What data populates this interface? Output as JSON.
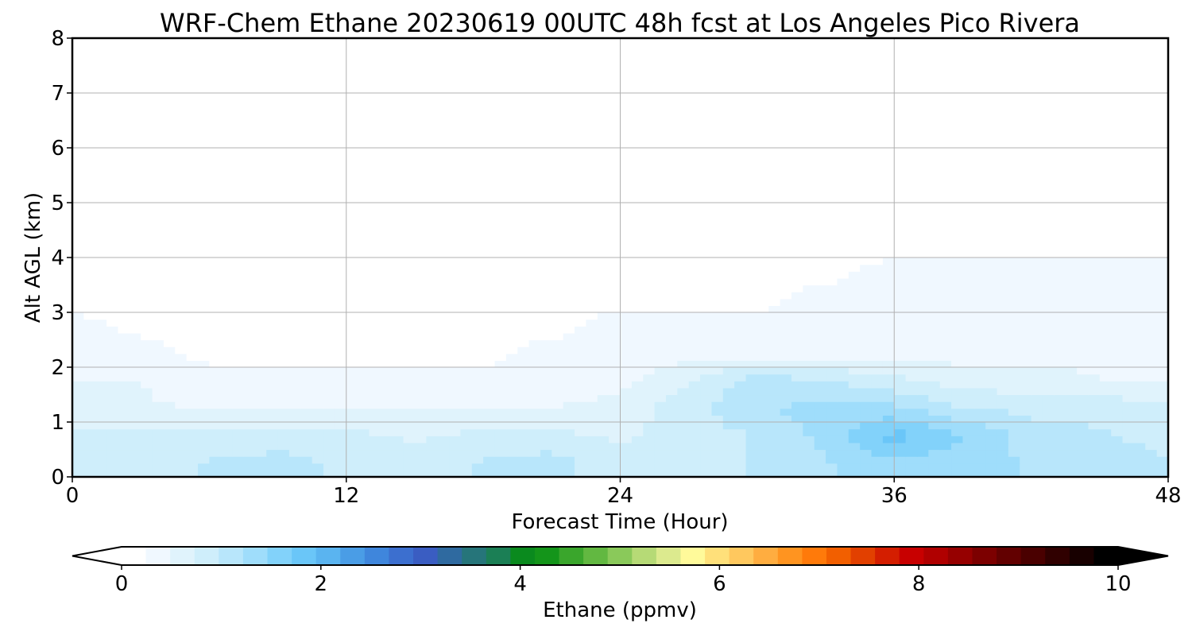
{
  "chart_data": {
    "type": "heatmap",
    "title": "WRF-Chem Ethane  20230619 00UTC 48h fcst at Los Angeles Pico Rivera",
    "xlabel": "Forecast Time (Hour)",
    "ylabel": "Alt AGL (km)",
    "xlim": [
      0,
      48
    ],
    "ylim": [
      0,
      8
    ],
    "xticks": [
      0,
      12,
      24,
      36,
      48
    ],
    "yticks": [
      0,
      1,
      2,
      3,
      4,
      5,
      6,
      7,
      8
    ],
    "grid": true,
    "x": [
      0,
      3,
      6,
      9,
      12,
      15,
      18,
      21,
      24,
      27,
      30,
      33,
      36,
      39,
      42,
      45,
      48
    ],
    "y": [
      0.25,
      0.75,
      1.25,
      1.75,
      2.25,
      2.75,
      3.25,
      3.75,
      4.25,
      4.75,
      5.25,
      5.75,
      6.25,
      6.75,
      7.25,
      7.75
    ],
    "z": [
      [
        0.9,
        0.9,
        1.0,
        1.1,
        0.9,
        0.8,
        1.0,
        1.1,
        0.8,
        0.8,
        1.0,
        1.2,
        1.4,
        1.3,
        1.2,
        1.1,
        1.0
      ],
      [
        0.8,
        0.8,
        0.8,
        0.8,
        0.8,
        0.7,
        0.8,
        0.8,
        0.7,
        0.8,
        1.0,
        1.3,
        1.8,
        1.5,
        1.1,
        1.0,
        0.9
      ],
      [
        0.6,
        0.5,
        0.5,
        0.5,
        0.5,
        0.5,
        0.5,
        0.5,
        0.6,
        0.9,
        1.2,
        1.3,
        1.3,
        1.0,
        0.9,
        0.9,
        0.8
      ],
      [
        0.5,
        0.5,
        0.3,
        0.3,
        0.3,
        0.3,
        0.3,
        0.3,
        0.4,
        0.7,
        1.1,
        1.0,
        0.8,
        0.6,
        0.6,
        0.5,
        0.5
      ],
      [
        0.4,
        0.3,
        0.2,
        0.2,
        0.2,
        0.2,
        0.2,
        0.3,
        0.3,
        0.4,
        0.4,
        0.4,
        0.4,
        0.4,
        0.4,
        0.4,
        0.4
      ],
      [
        0.3,
        0.2,
        0.2,
        0.2,
        0.2,
        0.2,
        0.2,
        0.2,
        0.3,
        0.3,
        0.3,
        0.3,
        0.3,
        0.3,
        0.3,
        0.3,
        0.3
      ],
      [
        0.2,
        0.1,
        0.1,
        0.1,
        0.1,
        0.1,
        0.1,
        0.2,
        0.2,
        0.2,
        0.2,
        0.3,
        0.3,
        0.3,
        0.3,
        0.3,
        0.3
      ],
      [
        0.1,
        0.1,
        0.1,
        0.1,
        0.1,
        0.1,
        0.1,
        0.1,
        0.1,
        0.1,
        0.2,
        0.2,
        0.3,
        0.3,
        0.3,
        0.3,
        0.3
      ],
      [
        0.2,
        0.2,
        0.2,
        0.1,
        0.1,
        0.1,
        0.1,
        0.1,
        0.1,
        0.1,
        0.1,
        0.1,
        0.2,
        0.2,
        0.2,
        0.2,
        0.2
      ],
      [
        0.2,
        0.2,
        0.2,
        0.2,
        0.2,
        0.2,
        0.1,
        0.1,
        0.1,
        0.1,
        0.1,
        0.1,
        0.1,
        0.2,
        0.2,
        0.2,
        0.2
      ],
      [
        0.2,
        0.2,
        0.2,
        0.2,
        0.2,
        0.2,
        0.2,
        0.2,
        0.2,
        0.1,
        0.1,
        0.1,
        0.1,
        0.2,
        0.2,
        0.2,
        0.2
      ],
      [
        0.2,
        0.2,
        0.2,
        0.2,
        0.2,
        0.2,
        0.2,
        0.2,
        0.2,
        0.2,
        0.2,
        0.2,
        0.2,
        0.2,
        0.2,
        0.2,
        0.2
      ],
      [
        0.2,
        0.2,
        0.2,
        0.2,
        0.2,
        0.2,
        0.2,
        0.2,
        0.2,
        0.2,
        0.2,
        0.2,
        0.2,
        0.2,
        0.2,
        0.2,
        0.2
      ],
      [
        0.2,
        0.2,
        0.2,
        0.2,
        0.2,
        0.2,
        0.2,
        0.2,
        0.2,
        0.2,
        0.2,
        0.2,
        0.2,
        0.2,
        0.2,
        0.2,
        0.2
      ],
      [
        0.2,
        0.2,
        0.2,
        0.2,
        0.2,
        0.2,
        0.2,
        0.2,
        0.2,
        0.2,
        0.2,
        0.2,
        0.2,
        0.2,
        0.2,
        0.2,
        0.2
      ],
      [
        0.2,
        0.2,
        0.2,
        0.2,
        0.2,
        0.2,
        0.2,
        0.2,
        0.2,
        0.2,
        0.2,
        0.2,
        0.2,
        0.2,
        0.2,
        0.2,
        0.2
      ]
    ],
    "colorbar": {
      "label": "Ethane  (ppmv)",
      "min": 0,
      "max": 10,
      "ticks": [
        0,
        2,
        4,
        6,
        8,
        10
      ],
      "extend": "both",
      "colors": [
        "#ffffff",
        "#f0f8ff",
        "#e0f3fc",
        "#cfeefb",
        "#b8e6fb",
        "#9fddfb",
        "#82d2fa",
        "#6ac6f8",
        "#5ab4f0",
        "#4a9de6",
        "#3f86dc",
        "#3c6fcf",
        "#3a5dc2",
        "#2f6aa0",
        "#26757a",
        "#1b7f55",
        "#0a8a1e",
        "#14951a",
        "#3aa62c",
        "#62b841",
        "#8ac95a",
        "#b6da76",
        "#dcea8e",
        "#fffa9a",
        "#ffe07a",
        "#ffc85e",
        "#ffad40",
        "#ff9420",
        "#ff7a0a",
        "#f25f00",
        "#e24000",
        "#d41e00",
        "#c80000",
        "#b00000",
        "#960000",
        "#7c0000",
        "#620000",
        "#4a0000",
        "#300000",
        "#180000",
        "#000000"
      ]
    }
  }
}
